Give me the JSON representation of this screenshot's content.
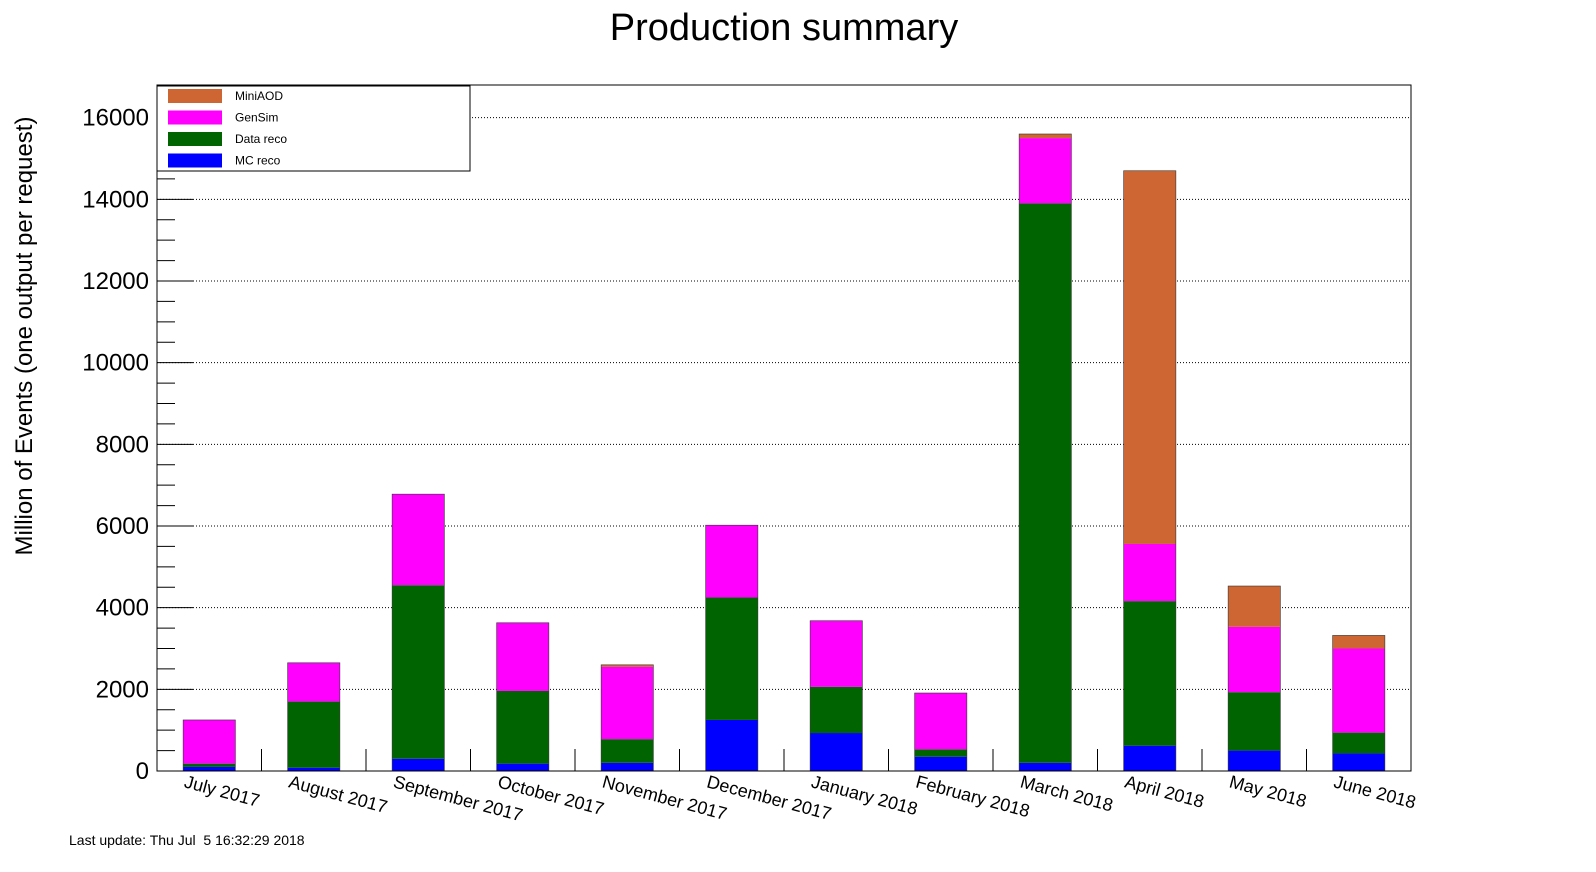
{
  "chart_data": {
    "type": "bar",
    "stacked": true,
    "title": "Production summary",
    "ylabel": "Million of Events (one output per request)",
    "xlabel": "",
    "ylim": [
      0,
      16800
    ],
    "yticks": [
      0,
      2000,
      4000,
      6000,
      8000,
      10000,
      12000,
      14000,
      16000
    ],
    "ytick_labels": [
      "0",
      "2000",
      "4000",
      "6000",
      "8000",
      "10000",
      "12000",
      "14000",
      "16000"
    ],
    "grid": "horizontal dotted at major ticks",
    "legend_position": "top-left",
    "categories": [
      "July 2017",
      "August 2017",
      "September 2017",
      "October 2017",
      "November 2017",
      "December 2017",
      "January 2018",
      "February 2018",
      "March 2018",
      "April 2018",
      "May 2018",
      "June 2018"
    ],
    "series": [
      {
        "name": "MC reco",
        "color": "#0000ff",
        "values": [
          100,
          80,
          300,
          180,
          200,
          1250,
          930,
          350,
          200,
          620,
          500,
          430
        ]
      },
      {
        "name": "Data reco",
        "color": "#006400",
        "values": [
          80,
          1620,
          4250,
          1780,
          580,
          3000,
          1130,
          180,
          13700,
          3540,
          1430,
          510
        ]
      },
      {
        "name": "GenSim",
        "color": "#ff00ff",
        "values": [
          1070,
          950,
          2230,
          1670,
          1770,
          1770,
          1620,
          1380,
          1600,
          1400,
          1600,
          2060
        ]
      },
      {
        "name": "MiniAOD",
        "color": "#cd6633",
        "values": [
          0,
          0,
          0,
          0,
          50,
          0,
          0,
          0,
          100,
          9140,
          1000,
          320
        ]
      }
    ],
    "legend_order": [
      "MiniAOD",
      "GenSim",
      "Data reco",
      "MC reco"
    ]
  },
  "footer": {
    "text": "Last update: Thu Jul  5 16:32:29 2018"
  }
}
